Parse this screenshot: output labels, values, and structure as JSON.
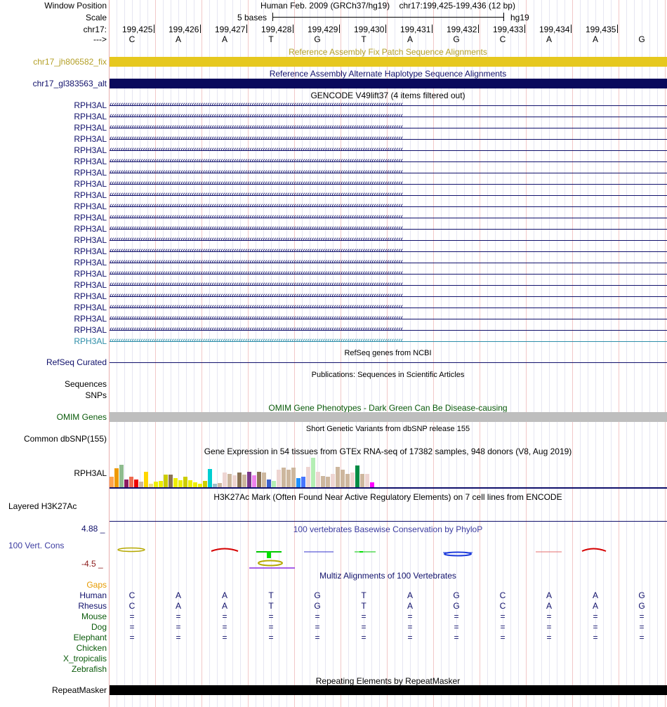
{
  "header": {
    "window_position_label": "Window Position",
    "window_position_value": "Human Feb. 2009 (GRCh37/hg19)    chr17:199,425-199,436 (12 bp)",
    "scale_label": "Scale",
    "scale_value": "5 bases",
    "scale_assembly": "hg19",
    "chrom_label": "chr17:",
    "strand_label": "--->"
  },
  "ruler_ticks": [
    "199,425",
    "199,426",
    "199,427",
    "199,428",
    "199,429",
    "199,430",
    "199,431",
    "199,432",
    "199,433",
    "199,434",
    "199,435"
  ],
  "sequence": [
    "C",
    "A",
    "A",
    "T",
    "G",
    "T",
    "A",
    "G",
    "C",
    "A",
    "A",
    "G"
  ],
  "tracks": {
    "fix_patch": {
      "title": "Reference Assembly Fix Patch Sequence Alignments",
      "label": "chr17_jh806582_fix",
      "color": "#e6c81e",
      "title_color": "#b4a028"
    },
    "alt_haplotype": {
      "title": "Reference Assembly Alternate Haplotype Sequence Alignments",
      "label": "chr17_gl383563_alt",
      "color": "#0a0a5c"
    },
    "gencode": {
      "title": "GENCODE V49lift37 (4 items filtered out)",
      "gene_name": "RPH3AL",
      "row_count": 22,
      "last_row_color": "#2e8ea8"
    },
    "refseq": {
      "title": "RefSeq genes from NCBI",
      "label": "RefSeq Curated"
    },
    "publications": {
      "title": "Publications: Sequences in Scientific Articles",
      "labels": [
        "Sequences",
        "SNPs"
      ]
    },
    "omim": {
      "title": "OMIM Gene Phenotypes - Dark Green Can Be Disease-causing",
      "label": "OMIM Genes",
      "color": "#bebebe",
      "title_color": "#0a5a0a"
    },
    "dbsnp": {
      "title": "Short Genetic Variants from dbSNP release 155",
      "label": "Common dbSNP(155)"
    },
    "gtex": {
      "title": "Gene Expression in 54 tissues from GTEx RNA-seq of 17382 samples, 948 donors (V8, Aug 2019)",
      "label": "RPH3AL",
      "values": [
        0.33,
        0.61,
        0.73,
        0.24,
        0.35,
        0.24,
        0.18,
        0.49,
        0.12,
        0.18,
        0.2,
        0.41,
        0.41,
        0.29,
        0.22,
        0.35,
        0.22,
        0.16,
        0.12,
        0.2,
        0.59,
        0.12,
        0.14,
        0.47,
        0.43,
        0.39,
        0.47,
        0.41,
        0.49,
        0.39,
        0.49,
        0.47,
        0.24,
        0.2,
        0.57,
        0.63,
        0.57,
        0.63,
        0.29,
        0.35,
        0.67,
        0.96,
        0.49,
        0.37,
        0.33,
        0.43,
        0.67,
        0.57,
        0.43,
        0.47,
        0.71,
        0.43,
        0.43,
        0.16
      ],
      "colors": [
        "#ffa54f",
        "#ee9a00",
        "#8fbc8f",
        "#8b1c62",
        "#ee6a50",
        "#ee0000",
        "#cdb79e",
        "#ffd700",
        "#eedd82",
        "#eeee00",
        "#eeee00",
        "#cdcd00",
        "#8b7355",
        "#eeee00",
        "#eeee00",
        "#cdcd00",
        "#eeee00",
        "#eeee00",
        "#eeee00",
        "#cdcd00",
        "#00ced1",
        "#9ac0cd",
        "#cdb79e",
        "#eed5d2",
        "#cdb79e",
        "#eed5d2",
        "#8b7355",
        "#cdb79e",
        "#7a378b",
        "#ee82ee",
        "#8b7355",
        "#cdb79e",
        "#3a5fcd",
        "#b4eeb4",
        "#eed5d2",
        "#cdb79e",
        "#cdb79e",
        "#cdb79e",
        "#1e90ff",
        "#4876ff",
        "#eed5d2",
        "#b4eeb4",
        "#eed5d2",
        "#cdb79e",
        "#cdb79e",
        "#eed5d2",
        "#cdb79e",
        "#cdb79e",
        "#cdb79e",
        "#eed5d2",
        "#008b45",
        "#cdb79e",
        "#eed5d2",
        "#ff00ff"
      ]
    },
    "h3k27ac": {
      "title": "H3K27Ac Mark (Often Found Near Active Regulatory Elements) on 7 cell lines from ENCODE",
      "label": "Layered H3K27Ac"
    },
    "conservation": {
      "title": "100 vertebrates Basewise Conservation by PhyloP",
      "label": "100 Vert. Cons",
      "max_label": "4.88 _",
      "min_label": "-4.5 _"
    },
    "multiz": {
      "title": "Multiz Alignments of 100 Vertebrates",
      "gaps_label": "Gaps",
      "species": [
        {
          "name": "Human",
          "row": [
            "C",
            "A",
            "A",
            "T",
            "G",
            "T",
            "A",
            "G",
            "C",
            "A",
            "A",
            "G"
          ]
        },
        {
          "name": "Rhesus",
          "row": [
            "C",
            "A",
            "A",
            "T",
            "G",
            "T",
            "A",
            "G",
            "C",
            "A",
            "A",
            "G"
          ]
        },
        {
          "name": "Mouse",
          "row": [
            "=",
            "=",
            "=",
            "=",
            "=",
            "=",
            "=",
            "=",
            "=",
            "=",
            "=",
            "="
          ]
        },
        {
          "name": "Dog",
          "row": [
            "=",
            "=",
            "=",
            "=",
            "=",
            "=",
            "=",
            "=",
            "=",
            "=",
            "=",
            "="
          ]
        },
        {
          "name": "Elephant",
          "row": [
            "=",
            "=",
            "=",
            "=",
            "=",
            "=",
            "=",
            "=",
            "=",
            "=",
            "=",
            "="
          ]
        },
        {
          "name": "Chicken",
          "row": []
        },
        {
          "name": "X_tropicalis",
          "row": []
        },
        {
          "name": "Zebrafish",
          "row": []
        }
      ]
    },
    "repeatmasker": {
      "title": "Repeating Elements by RepeatMasker",
      "label": "RepeatMasker",
      "color": "#000000"
    }
  }
}
